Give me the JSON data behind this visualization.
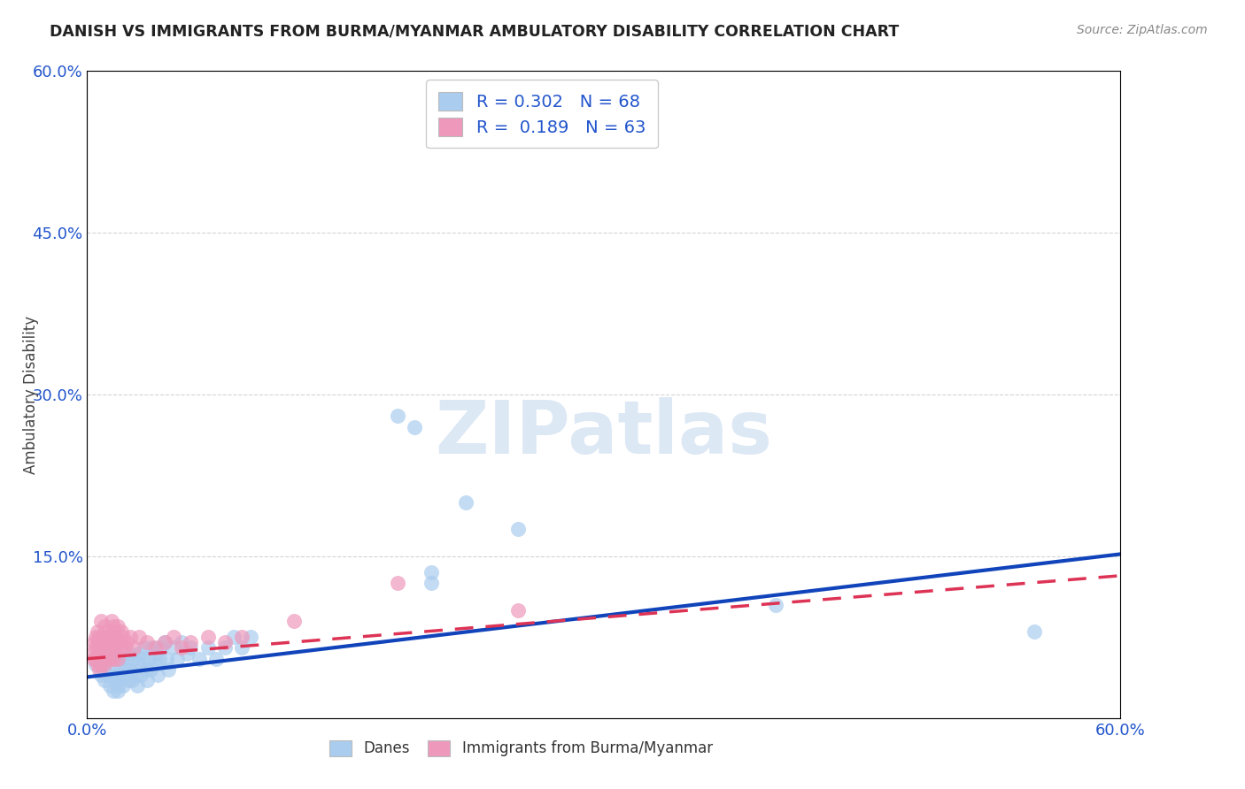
{
  "title": "DANISH VS IMMIGRANTS FROM BURMA/MYANMAR AMBULATORY DISABILITY CORRELATION CHART",
  "source": "Source: ZipAtlas.com",
  "ylabel": "Ambulatory Disability",
  "xlim": [
    0.0,
    0.6
  ],
  "ylim": [
    0.0,
    0.6
  ],
  "xtick_positions": [
    0.0,
    0.6
  ],
  "xtick_labels": [
    "0.0%",
    "60.0%"
  ],
  "ytick_positions": [
    0.15,
    0.3,
    0.45,
    0.6
  ],
  "ytick_labels": [
    "15.0%",
    "30.0%",
    "45.0%",
    "60.0%"
  ],
  "danes_color": "#aaccee",
  "immigrants_color": "#ee99bb",
  "danes_line_color": "#1144bb",
  "immigrants_line_color": "#dd3355",
  "legend_R_danes": "0.302",
  "legend_N_danes": "68",
  "legend_R_immigrants": "0.189",
  "legend_N_immigrants": "63",
  "danes_scatter": [
    [
      0.005,
      0.05
    ],
    [
      0.008,
      0.04
    ],
    [
      0.009,
      0.045
    ],
    [
      0.01,
      0.05
    ],
    [
      0.01,
      0.035
    ],
    [
      0.012,
      0.055
    ],
    [
      0.012,
      0.04
    ],
    [
      0.013,
      0.03
    ],
    [
      0.014,
      0.06
    ],
    [
      0.015,
      0.04
    ],
    [
      0.015,
      0.025
    ],
    [
      0.016,
      0.045
    ],
    [
      0.017,
      0.035
    ],
    [
      0.018,
      0.03
    ],
    [
      0.018,
      0.025
    ],
    [
      0.019,
      0.05
    ],
    [
      0.02,
      0.055
    ],
    [
      0.02,
      0.04
    ],
    [
      0.021,
      0.03
    ],
    [
      0.022,
      0.045
    ],
    [
      0.023,
      0.055
    ],
    [
      0.023,
      0.04
    ],
    [
      0.024,
      0.035
    ],
    [
      0.025,
      0.06
    ],
    [
      0.025,
      0.045
    ],
    [
      0.026,
      0.035
    ],
    [
      0.027,
      0.055
    ],
    [
      0.027,
      0.045
    ],
    [
      0.028,
      0.04
    ],
    [
      0.029,
      0.03
    ],
    [
      0.03,
      0.06
    ],
    [
      0.03,
      0.05
    ],
    [
      0.031,
      0.04
    ],
    [
      0.032,
      0.055
    ],
    [
      0.033,
      0.065
    ],
    [
      0.034,
      0.045
    ],
    [
      0.035,
      0.035
    ],
    [
      0.036,
      0.055
    ],
    [
      0.037,
      0.045
    ],
    [
      0.038,
      0.065
    ],
    [
      0.04,
      0.06
    ],
    [
      0.04,
      0.05
    ],
    [
      0.041,
      0.04
    ],
    [
      0.042,
      0.055
    ],
    [
      0.043,
      0.065
    ],
    [
      0.045,
      0.07
    ],
    [
      0.046,
      0.055
    ],
    [
      0.047,
      0.045
    ],
    [
      0.05,
      0.065
    ],
    [
      0.052,
      0.055
    ],
    [
      0.055,
      0.07
    ],
    [
      0.058,
      0.06
    ],
    [
      0.06,
      0.065
    ],
    [
      0.065,
      0.055
    ],
    [
      0.07,
      0.065
    ],
    [
      0.075,
      0.055
    ],
    [
      0.08,
      0.065
    ],
    [
      0.085,
      0.075
    ],
    [
      0.09,
      0.065
    ],
    [
      0.095,
      0.075
    ],
    [
      0.18,
      0.28
    ],
    [
      0.19,
      0.27
    ],
    [
      0.2,
      0.135
    ],
    [
      0.2,
      0.125
    ],
    [
      0.22,
      0.2
    ],
    [
      0.25,
      0.175
    ],
    [
      0.4,
      0.105
    ],
    [
      0.55,
      0.08
    ]
  ],
  "immigrants_scatter": [
    [
      0.003,
      0.06
    ],
    [
      0.004,
      0.07
    ],
    [
      0.004,
      0.055
    ],
    [
      0.005,
      0.075
    ],
    [
      0.005,
      0.065
    ],
    [
      0.005,
      0.055
    ],
    [
      0.006,
      0.08
    ],
    [
      0.006,
      0.07
    ],
    [
      0.006,
      0.06
    ],
    [
      0.006,
      0.05
    ],
    [
      0.007,
      0.075
    ],
    [
      0.007,
      0.065
    ],
    [
      0.007,
      0.055
    ],
    [
      0.007,
      0.045
    ],
    [
      0.008,
      0.09
    ],
    [
      0.008,
      0.07
    ],
    [
      0.008,
      0.06
    ],
    [
      0.008,
      0.05
    ],
    [
      0.009,
      0.075
    ],
    [
      0.009,
      0.065
    ],
    [
      0.009,
      0.055
    ],
    [
      0.01,
      0.085
    ],
    [
      0.01,
      0.07
    ],
    [
      0.01,
      0.06
    ],
    [
      0.01,
      0.05
    ],
    [
      0.011,
      0.08
    ],
    [
      0.011,
      0.065
    ],
    [
      0.012,
      0.075
    ],
    [
      0.012,
      0.065
    ],
    [
      0.013,
      0.07
    ],
    [
      0.013,
      0.055
    ],
    [
      0.014,
      0.09
    ],
    [
      0.014,
      0.075
    ],
    [
      0.015,
      0.085
    ],
    [
      0.015,
      0.065
    ],
    [
      0.015,
      0.055
    ],
    [
      0.016,
      0.08
    ],
    [
      0.016,
      0.07
    ],
    [
      0.017,
      0.075
    ],
    [
      0.017,
      0.065
    ],
    [
      0.018,
      0.085
    ],
    [
      0.018,
      0.055
    ],
    [
      0.019,
      0.07
    ],
    [
      0.02,
      0.08
    ],
    [
      0.02,
      0.065
    ],
    [
      0.021,
      0.075
    ],
    [
      0.022,
      0.065
    ],
    [
      0.023,
      0.07
    ],
    [
      0.025,
      0.075
    ],
    [
      0.027,
      0.065
    ],
    [
      0.03,
      0.075
    ],
    [
      0.035,
      0.07
    ],
    [
      0.04,
      0.065
    ],
    [
      0.045,
      0.07
    ],
    [
      0.05,
      0.075
    ],
    [
      0.055,
      0.065
    ],
    [
      0.06,
      0.07
    ],
    [
      0.07,
      0.075
    ],
    [
      0.08,
      0.07
    ],
    [
      0.09,
      0.075
    ],
    [
      0.12,
      0.09
    ],
    [
      0.18,
      0.125
    ],
    [
      0.25,
      0.1
    ]
  ],
  "danes_trend_x": [
    0.0,
    0.6
  ],
  "danes_trend_y": [
    0.038,
    0.152
  ],
  "immigrants_trend_x": [
    0.0,
    0.6
  ],
  "immigrants_trend_y": [
    0.055,
    0.132
  ],
  "background_color": "#ffffff",
  "grid_color": "#d0d0d0",
  "watermark_text": "ZIPatlas",
  "watermark_color": "#dde8f5",
  "legend1_label": "Danes",
  "legend2_label": "Immigrants from Burma/Myanmar"
}
